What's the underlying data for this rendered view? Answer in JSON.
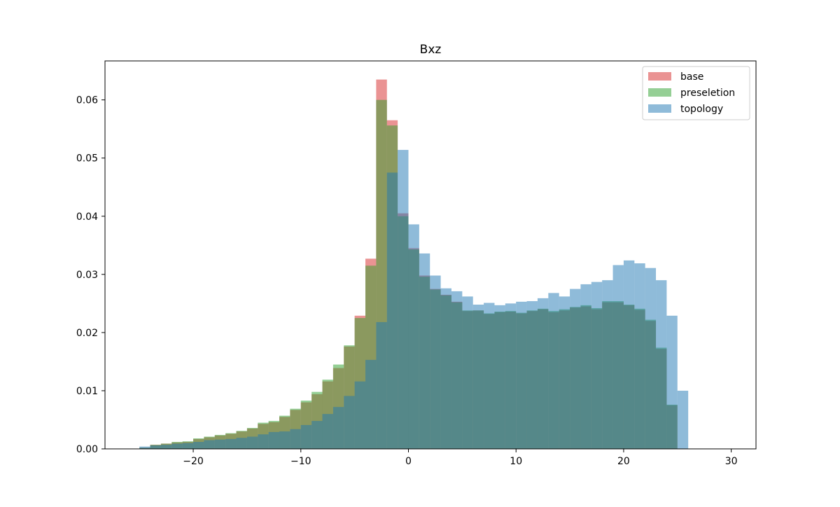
{
  "chart_data": {
    "type": "histogram",
    "title": "Bxz",
    "xlabel": "",
    "ylabel": "",
    "xlim": [
      -28.2,
      32.3
    ],
    "ylim": [
      0,
      0.0667
    ],
    "x_ticks": [
      -20,
      -10,
      0,
      10,
      20,
      30
    ],
    "x_tick_labels": [
      "−20",
      "−10",
      "0",
      "10",
      "20",
      "30"
    ],
    "y_ticks": [
      0.0,
      0.01,
      0.02,
      0.03,
      0.04,
      0.05,
      0.06
    ],
    "y_tick_labels": [
      "0.00",
      "0.01",
      "0.02",
      "0.03",
      "0.04",
      "0.05",
      "0.06"
    ],
    "grid": false,
    "legend_position": "upper-right",
    "bin_start": -25.0,
    "bin_width": 1.0,
    "series": [
      {
        "name": "base",
        "color": "#d62728",
        "opacity": 0.5,
        "values": [
          0.0002,
          0.0007,
          0.0009,
          0.0011,
          0.0012,
          0.0017,
          0.002,
          0.0023,
          0.0026,
          0.003,
          0.0035,
          0.0043,
          0.0046,
          0.0055,
          0.0067,
          0.008,
          0.0094,
          0.0116,
          0.0139,
          0.0176,
          0.0229,
          0.0327,
          0.0635,
          0.0565,
          0.0405,
          0.0345,
          0.0298,
          0.0275,
          0.0265,
          0.0253,
          0.0237,
          0.0238,
          0.0232,
          0.0235,
          0.0236,
          0.0233,
          0.0237,
          0.024,
          0.0235,
          0.0238,
          0.0243,
          0.0245,
          0.024,
          0.0252,
          0.0252,
          0.0247,
          0.0239,
          0.022,
          0.0172,
          0.0075,
          0.0
        ]
      },
      {
        "name": "preseletion",
        "color": "#2ca02c",
        "opacity": 0.5,
        "values": [
          0.0002,
          0.0007,
          0.0009,
          0.0012,
          0.0013,
          0.0018,
          0.0021,
          0.0024,
          0.0027,
          0.0031,
          0.0036,
          0.0045,
          0.0048,
          0.0057,
          0.0069,
          0.0083,
          0.0098,
          0.0119,
          0.0145,
          0.0178,
          0.0225,
          0.0315,
          0.06,
          0.0556,
          0.04,
          0.0343,
          0.0296,
          0.0274,
          0.0264,
          0.0252,
          0.0238,
          0.0238,
          0.0233,
          0.0236,
          0.0237,
          0.0234,
          0.0238,
          0.0241,
          0.0237,
          0.024,
          0.0244,
          0.0247,
          0.0242,
          0.0254,
          0.0254,
          0.0248,
          0.0241,
          0.0222,
          0.0174,
          0.0076,
          0.0
        ]
      },
      {
        "name": "topology",
        "color": "#1f77b4",
        "opacity": 0.5,
        "values": [
          0.0004,
          0.0006,
          0.0007,
          0.0009,
          0.001,
          0.0012,
          0.0015,
          0.0016,
          0.0017,
          0.0019,
          0.0021,
          0.0025,
          0.0029,
          0.003,
          0.0034,
          0.0041,
          0.0048,
          0.006,
          0.0072,
          0.0091,
          0.0116,
          0.0153,
          0.0218,
          0.0475,
          0.0514,
          0.0386,
          0.0336,
          0.0298,
          0.0276,
          0.0271,
          0.0262,
          0.0248,
          0.0251,
          0.0247,
          0.025,
          0.0253,
          0.0254,
          0.0259,
          0.0268,
          0.0262,
          0.0275,
          0.0283,
          0.0287,
          0.029,
          0.0316,
          0.0324,
          0.0319,
          0.0311,
          0.029,
          0.0229,
          0.01
        ]
      }
    ]
  }
}
